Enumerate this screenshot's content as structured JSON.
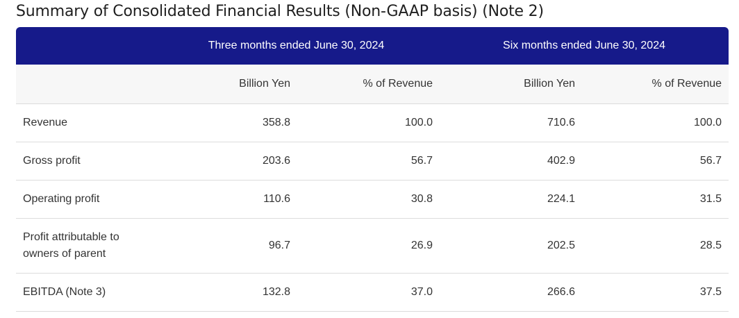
{
  "page": {
    "title": "Summary of Consolidated Financial Results (Non-GAAP basis) (Note 2)"
  },
  "table": {
    "periods": [
      "Three months ended June 30, 2024",
      "Six months ended June 30, 2024"
    ],
    "units": [
      "Billion Yen",
      "% of Revenue",
      "Billion Yen",
      "% of Revenue"
    ],
    "rows": [
      {
        "label": "Revenue",
        "values": [
          "358.8",
          "100.0",
          "710.6",
          "100.0"
        ]
      },
      {
        "label": "Gross profit",
        "values": [
          "203.6",
          "56.7",
          "402.9",
          "56.7"
        ]
      },
      {
        "label": "Operating profit",
        "values": [
          "110.6",
          "30.8",
          "224.1",
          "31.5"
        ]
      },
      {
        "label": "Profit attributable to owners of parent",
        "values": [
          "96.7",
          "26.9",
          "202.5",
          "28.5"
        ]
      },
      {
        "label": "EBITDA (Note 3)",
        "values": [
          "132.8",
          "37.0",
          "266.6",
          "37.5"
        ]
      }
    ]
  },
  "colors": {
    "header_background": "#161a8a",
    "header_text": "#ffffff",
    "subheader_background": "#f7f7f7",
    "row_divider": "#dcdcdc"
  }
}
